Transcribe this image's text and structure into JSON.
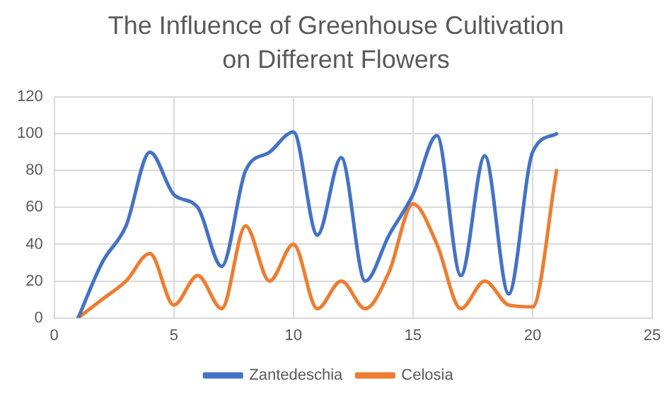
{
  "chart_data": {
    "type": "line",
    "title": "The Influence of Greenhouse Cultivation on Different Flowers",
    "x": [
      1,
      2,
      3,
      4,
      5,
      6,
      7,
      8,
      9,
      10,
      11,
      12,
      13,
      14,
      15,
      16,
      17,
      18,
      19,
      20,
      21
    ],
    "series": [
      {
        "name": "Zantedeschia",
        "color": "#4472c4",
        "values": [
          0,
          30,
          50,
          90,
          67,
          60,
          28,
          80,
          90,
          101,
          45,
          87,
          20,
          45,
          67,
          99,
          23,
          88,
          13,
          90,
          100
        ]
      },
      {
        "name": "Celosia",
        "color": "#ed7d31",
        "values": [
          0,
          10,
          20,
          35,
          7,
          23,
          5,
          50,
          20,
          40,
          5,
          20,
          5,
          25,
          62,
          40,
          5,
          20,
          7,
          6,
          80
        ]
      }
    ],
    "xlim": [
      0,
      25
    ],
    "xticks": [
      0,
      5,
      10,
      15,
      20,
      25
    ],
    "ylim": [
      0,
      120
    ],
    "yticks": [
      0,
      20,
      40,
      60,
      80,
      100,
      120
    ],
    "grid": true,
    "legend": "bottom",
    "marker": "none",
    "line_style": "solid"
  }
}
